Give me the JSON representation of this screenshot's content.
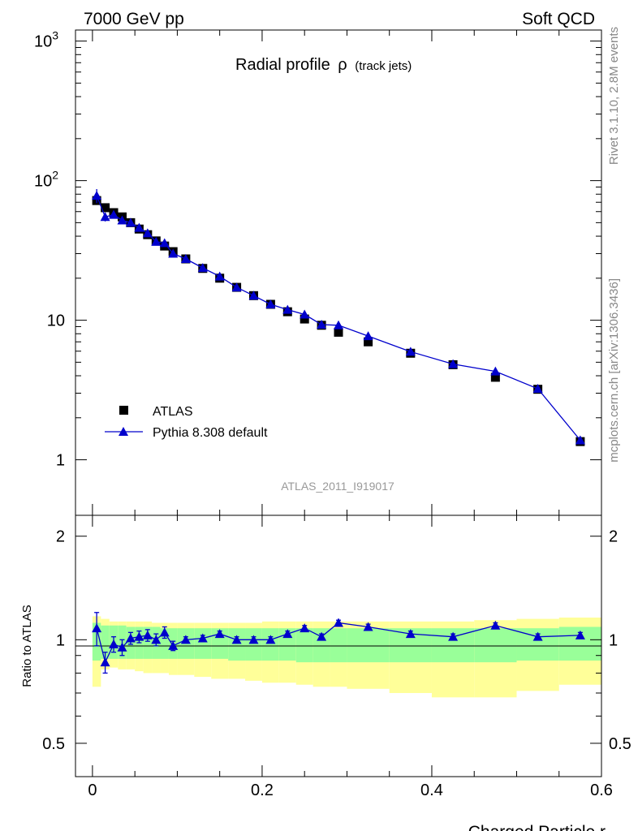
{
  "header": {
    "left": "7000 GeV pp",
    "right": "Soft QCD"
  },
  "side_labels": {
    "top": "Rivet 3.1.10,  2.8M events",
    "bottom": "mcplots.cern.ch [arXiv:1306.3436]"
  },
  "analysis_id": "ATLAS_2011_I919017",
  "chart_data": {
    "type": "line",
    "title": "Radial profile",
    "title_symbol": "ρ",
    "title_suffix": "(track jets)",
    "xlabel": "Charged Particle r",
    "ylabel_ratio": "Ratio to ATLAS",
    "xlim": [
      -0.02,
      0.6
    ],
    "ylim": [
      0.4,
      1200
    ],
    "yscale": "log",
    "ratio_ylim": [
      0.4,
      2.3
    ],
    "x_ticks": [
      "0",
      "0.2",
      "0.4",
      "0.6"
    ],
    "x_tick_values": [
      0,
      0.2,
      0.4,
      0.6
    ],
    "y_tick_labels": [
      {
        "value": 1,
        "label": "1"
      },
      {
        "value": 10,
        "label": "10"
      },
      {
        "value": 100,
        "label": "10",
        "sup": "2"
      },
      {
        "value": 1000,
        "label": "10",
        "sup": "3"
      }
    ],
    "ratio_ticks": [
      {
        "value": 0.5,
        "label": "0.5"
      },
      {
        "value": 1,
        "label": "1"
      },
      {
        "value": 2,
        "label": "2"
      }
    ],
    "legend_position": "lower-left",
    "series": [
      {
        "name": "ATLAS",
        "color": "#000000",
        "marker": "square",
        "x": [
          0.005,
          0.015,
          0.025,
          0.035,
          0.045,
          0.055,
          0.065,
          0.075,
          0.085,
          0.095,
          0.11,
          0.13,
          0.15,
          0.17,
          0.19,
          0.21,
          0.23,
          0.25,
          0.27,
          0.29,
          0.325,
          0.375,
          0.425,
          0.475,
          0.525,
          0.575
        ],
        "y": [
          72,
          64,
          59,
          55,
          50,
          45,
          41,
          37,
          34,
          31,
          27.5,
          23.5,
          20,
          17.2,
          15.0,
          13.0,
          11.5,
          10.2,
          9.2,
          8.2,
          7.0,
          5.8,
          4.8,
          3.9,
          3.2,
          1.35
        ]
      },
      {
        "name": "Pythia 8.308 default",
        "color": "#0000cc",
        "marker": "triangle",
        "x": [
          0.005,
          0.015,
          0.025,
          0.035,
          0.045,
          0.055,
          0.065,
          0.075,
          0.085,
          0.095,
          0.11,
          0.13,
          0.15,
          0.17,
          0.19,
          0.21,
          0.23,
          0.25,
          0.27,
          0.29,
          0.325,
          0.375,
          0.425,
          0.475,
          0.525,
          0.575
        ],
        "y": [
          78,
          55,
          57,
          52,
          50,
          46,
          42,
          36.5,
          35.7,
          30,
          27.5,
          23.7,
          20.6,
          17.2,
          15.0,
          13.0,
          11.9,
          11.0,
          9.3,
          9.2,
          7.7,
          5.95,
          4.85,
          4.3,
          3.23,
          1.38
        ],
        "yerr": [
          9,
          4,
          2.5,
          2.5,
          2,
          1.5,
          1.5,
          1.5,
          1.5,
          1.2,
          0.8,
          0.6,
          0.5,
          0.4,
          0.3,
          0.3,
          0.3,
          0.3,
          0.3,
          0.3,
          0.2,
          0.15,
          0.12,
          0.12,
          0.1,
          0.05
        ]
      }
    ],
    "ratio": {
      "x": [
        0.005,
        0.015,
        0.025,
        0.035,
        0.045,
        0.055,
        0.065,
        0.075,
        0.085,
        0.095,
        0.11,
        0.13,
        0.15,
        0.17,
        0.19,
        0.21,
        0.23,
        0.25,
        0.27,
        0.29,
        0.325,
        0.375,
        0.425,
        0.475,
        0.525,
        0.575
      ],
      "y": [
        1.08,
        0.86,
        0.97,
        0.95,
        1.01,
        1.02,
        1.03,
        1.0,
        1.05,
        0.96,
        1.0,
        1.01,
        1.04,
        1.0,
        1.0,
        1.0,
        1.04,
        1.08,
        1.02,
        1.12,
        1.09,
        1.04,
        1.02,
        1.1,
        1.02,
        1.03
      ],
      "yerr": [
        0.12,
        0.06,
        0.05,
        0.05,
        0.04,
        0.04,
        0.04,
        0.04,
        0.04,
        0.03,
        0.02,
        0.02,
        0.02,
        0.02,
        0.02,
        0.02,
        0.02,
        0.02,
        0.02,
        0.02,
        0.02,
        0.02,
        0.02,
        0.02,
        0.02,
        0.02
      ],
      "band_edges": [
        0.0,
        0.01,
        0.02,
        0.03,
        0.04,
        0.05,
        0.06,
        0.07,
        0.08,
        0.09,
        0.1,
        0.12,
        0.14,
        0.16,
        0.18,
        0.2,
        0.22,
        0.24,
        0.26,
        0.28,
        0.3,
        0.35,
        0.4,
        0.45,
        0.5,
        0.55,
        0.6
      ],
      "green_lo": [
        0.87,
        0.88,
        0.88,
        0.88,
        0.88,
        0.88,
        0.88,
        0.88,
        0.88,
        0.88,
        0.88,
        0.88,
        0.88,
        0.87,
        0.87,
        0.87,
        0.87,
        0.86,
        0.86,
        0.86,
        0.86,
        0.86,
        0.86,
        0.86,
        0.87,
        0.87
      ],
      "green_hi": [
        1.12,
        1.1,
        1.1,
        1.1,
        1.09,
        1.09,
        1.09,
        1.09,
        1.08,
        1.08,
        1.08,
        1.08,
        1.08,
        1.08,
        1.08,
        1.08,
        1.08,
        1.08,
        1.08,
        1.08,
        1.08,
        1.08,
        1.08,
        1.08,
        1.08,
        1.09
      ],
      "yellow_lo": [
        0.73,
        0.82,
        0.83,
        0.82,
        0.82,
        0.81,
        0.8,
        0.8,
        0.8,
        0.79,
        0.79,
        0.78,
        0.77,
        0.77,
        0.76,
        0.75,
        0.75,
        0.74,
        0.73,
        0.73,
        0.72,
        0.7,
        0.68,
        0.68,
        0.71,
        0.74
      ],
      "yellow_hi": [
        1.17,
        1.15,
        1.13,
        1.13,
        1.13,
        1.13,
        1.13,
        1.12,
        1.12,
        1.12,
        1.12,
        1.12,
        1.12,
        1.12,
        1.12,
        1.13,
        1.13,
        1.13,
        1.13,
        1.13,
        1.13,
        1.13,
        1.13,
        1.14,
        1.15,
        1.16
      ]
    },
    "colors": {
      "green_band": "#99ff99",
      "yellow_band": "#ffff99",
      "mc": "#0000cc",
      "data": "#000000"
    }
  }
}
